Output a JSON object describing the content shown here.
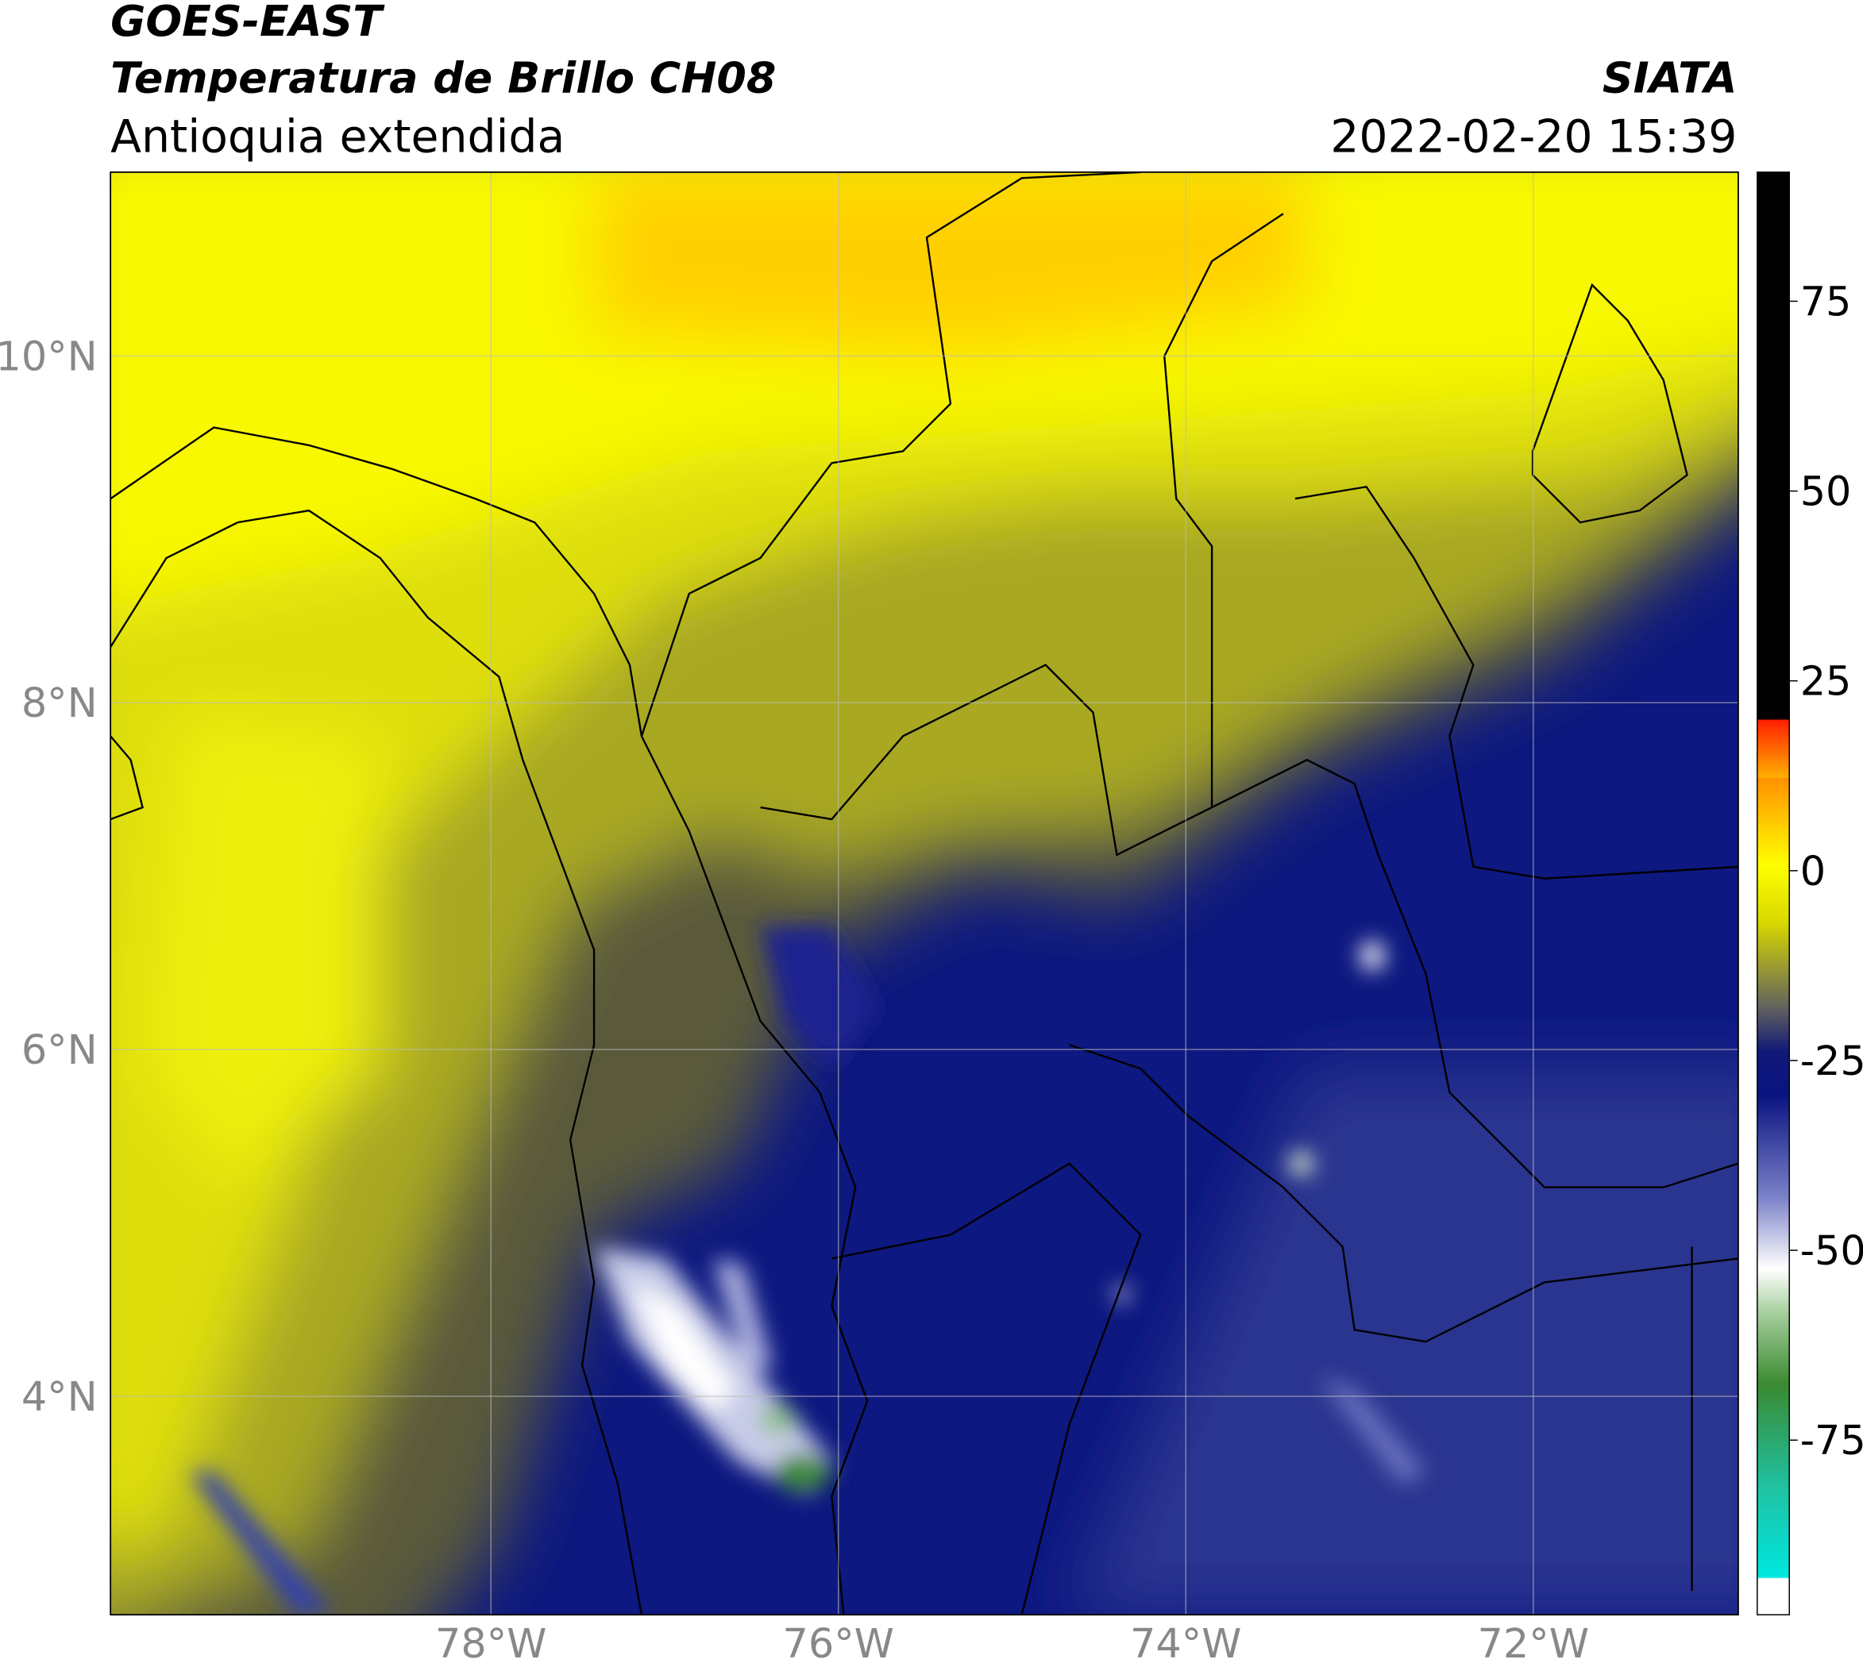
{
  "header": {
    "title": "GOES-EAST",
    "subtitle": "Temperatura de Brillo CH08",
    "region": "Antioquia extendida",
    "source": "SIATA",
    "date": "2022-02-20 15:39"
  },
  "map": {
    "xlim": [
      -80.19,
      -70.82
    ],
    "ylim": [
      2.74,
      11.06
    ],
    "xticks": [
      {
        "value": -78,
        "label": "78°W"
      },
      {
        "value": -76,
        "label": "76°W"
      },
      {
        "value": -74,
        "label": "74°W"
      },
      {
        "value": -72,
        "label": "72°W"
      }
    ],
    "yticks": [
      {
        "value": 10,
        "label": "10°N"
      },
      {
        "value": 8,
        "label": "8°N"
      },
      {
        "value": 6,
        "label": "6°N"
      },
      {
        "value": 4,
        "label": "4°N"
      }
    ],
    "grid": true
  },
  "colorbar": {
    "clim": [
      -98,
      92
    ],
    "ticks": [
      75,
      50,
      25,
      0,
      -25,
      -50,
      -75
    ]
  }
}
